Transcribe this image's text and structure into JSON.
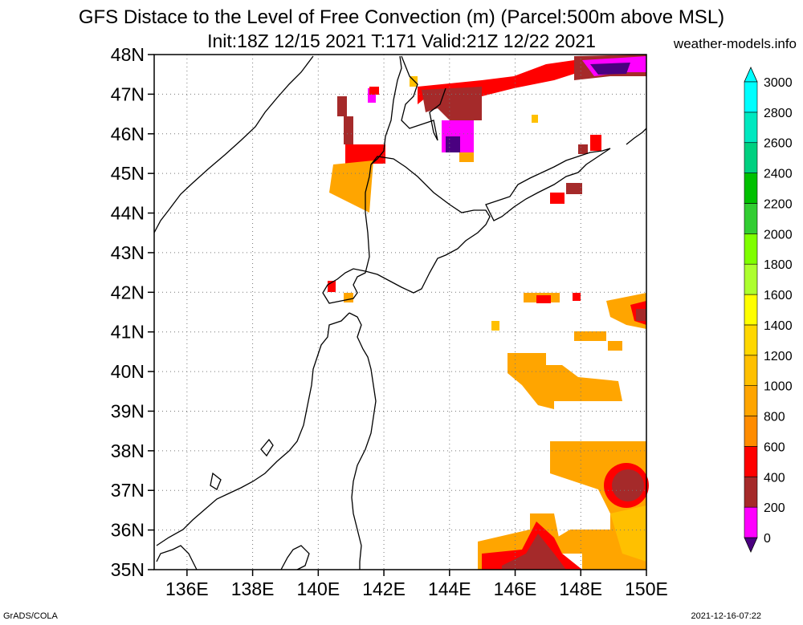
{
  "title": {
    "line1": "GFS Distace to the Level of Free Convection (m) (Parcel:500m above MSL)",
    "line2": "Init:18Z 12/15 2021 T:171 Valid:21Z 12/22 2021"
  },
  "site_label": "weather-models.info",
  "footer": {
    "left": "GrADS/COLA",
    "right": "2021-12-16-07:22"
  },
  "map": {
    "lon_range": [
      135,
      150
    ],
    "lat_range": [
      35,
      48
    ],
    "lon_ticks": [
      "136E",
      "138E",
      "140E",
      "142E",
      "144E",
      "146E",
      "148E",
      "150E"
    ],
    "lat_ticks": [
      "35N",
      "36N",
      "37N",
      "38N",
      "39N",
      "40N",
      "41N",
      "42N",
      "43N",
      "44N",
      "45N",
      "46N",
      "47N",
      "48N"
    ]
  },
  "colorbar": {
    "labels": [
      "0",
      "200",
      "400",
      "600",
      "800",
      "1000",
      "1200",
      "1400",
      "1600",
      "1800",
      "2000",
      "2200",
      "2400",
      "2600",
      "2800",
      "3000"
    ],
    "colors": [
      "#4a0080",
      "#ff00ff",
      "#a52a2a",
      "#ff0000",
      "#ff8c00",
      "#ffa500",
      "#ffc000",
      "#ffd700",
      "#ffff00",
      "#adff2f",
      "#7fff00",
      "#32cd32",
      "#00c000",
      "#00d080",
      "#00e8c0",
      "#00ffff"
    ]
  }
}
